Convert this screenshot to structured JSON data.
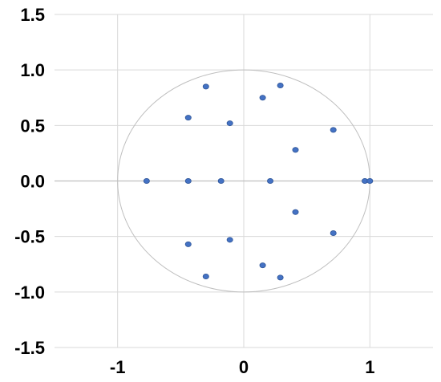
{
  "chart_data": {
    "type": "scatter",
    "title": "",
    "xlabel": "",
    "ylabel": "",
    "xlim": [
      -1.5,
      1.5
    ],
    "ylim": [
      -1.5,
      1.5
    ],
    "grid": true,
    "legend": "none",
    "x_ticks": [
      -1,
      0,
      1
    ],
    "x_tick_labels": [
      "-1",
      "0",
      "1"
    ],
    "y_ticks": [
      1.5,
      1.0,
      0.5,
      0.0,
      -0.5,
      -1.0,
      -1.5
    ],
    "y_tick_labels": [
      "1.5",
      "1.0",
      "0.5",
      "0.0",
      "-0.5",
      "-1.0",
      "-1.5"
    ],
    "reference_circle": {
      "center": [
        0,
        0
      ],
      "radius": 1
    },
    "point_color": "#4472c4",
    "series": [
      {
        "x": [
          -0.3,
          0.29,
          0.15,
          -0.44,
          -0.11,
          0.71,
          0.41,
          -0.77,
          -0.44,
          -0.18,
          0.21,
          0.96,
          1.0,
          0.41,
          0.71,
          -0.44,
          -0.11,
          0.15,
          -0.3,
          0.29
        ],
        "y": [
          0.85,
          0.86,
          0.75,
          0.57,
          0.52,
          0.46,
          0.28,
          0.0,
          0.0,
          0.0,
          0.0,
          0.0,
          0.0,
          -0.28,
          -0.47,
          -0.57,
          -0.53,
          -0.76,
          -0.86,
          -0.87
        ]
      }
    ]
  }
}
